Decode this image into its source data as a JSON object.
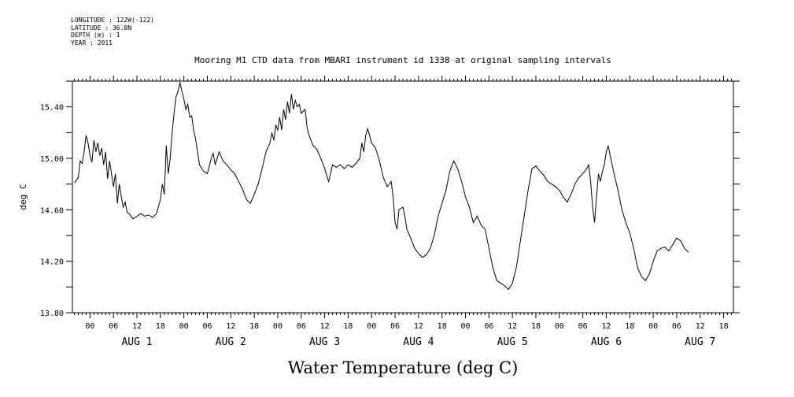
{
  "metadata": {
    "longitude": "LONGITUDE : 122W(-122)",
    "latitude": "LATITUDE : 36.8N",
    "depth": "DEPTH (m) : 1",
    "year": "YEAR : 2011"
  },
  "chart_data": {
    "type": "line",
    "title": "Mooring M1 CTD data from MBARI instrument id 1338 at original sampling intervals",
    "xlabel": "Water Temperature (deg C)",
    "ylabel": "deg C",
    "ylim": [
      13.8,
      15.6
    ],
    "xlim_hours": [
      -4.5,
      164.5
    ],
    "yticks": [
      "13.80",
      "14.20",
      "14.60",
      "15.00",
      "15.40"
    ],
    "xtick_labels": [
      "00",
      "06",
      "12",
      "18",
      "00",
      "06",
      "12",
      "18",
      "00",
      "06",
      "12",
      "18",
      "00",
      "06",
      "12",
      "18",
      "00",
      "06",
      "12",
      "18",
      "00",
      "06",
      "12",
      "18",
      "00",
      "06",
      "12",
      "18"
    ],
    "day_labels": [
      "AUG 1",
      "AUG 2",
      "AUG 3",
      "AUG 4",
      "AUG 5",
      "AUG 6",
      "AUG 7"
    ],
    "grid": false,
    "series": [
      {
        "color": "#000000",
        "points": [
          [
            -4.0,
            14.81
          ],
          [
            -3.0,
            14.85
          ],
          [
            -2.5,
            14.98
          ],
          [
            -2.0,
            14.96
          ],
          [
            -1.5,
            15.05
          ],
          [
            -1.0,
            15.18
          ],
          [
            -0.5,
            15.12
          ],
          [
            0.0,
            15.02
          ],
          [
            0.5,
            14.97
          ],
          [
            1.0,
            15.14
          ],
          [
            1.5,
            15.05
          ],
          [
            2.0,
            15.12
          ],
          [
            2.5,
            15.02
          ],
          [
            3.0,
            15.08
          ],
          [
            3.5,
            14.95
          ],
          [
            4.0,
            15.05
          ],
          [
            4.5,
            14.84
          ],
          [
            5.0,
            14.98
          ],
          [
            5.5,
            14.88
          ],
          [
            6.0,
            14.78
          ],
          [
            6.5,
            14.88
          ],
          [
            7.0,
            14.65
          ],
          [
            7.5,
            14.8
          ],
          [
            8.0,
            14.7
          ],
          [
            8.5,
            14.62
          ],
          [
            9.0,
            14.66
          ],
          [
            9.5,
            14.58
          ],
          [
            10.0,
            14.57
          ],
          [
            11.0,
            14.53
          ],
          [
            12.0,
            14.55
          ],
          [
            13.0,
            14.57
          ],
          [
            14.0,
            14.55
          ],
          [
            15.0,
            14.56
          ],
          [
            16.0,
            14.54
          ],
          [
            17.0,
            14.57
          ],
          [
            18.0,
            14.68
          ],
          [
            18.5,
            14.8
          ],
          [
            19.0,
            14.72
          ],
          [
            19.5,
            15.1
          ],
          [
            20.0,
            14.88
          ],
          [
            20.5,
            15.0
          ],
          [
            21.0,
            15.2
          ],
          [
            21.5,
            15.35
          ],
          [
            22.0,
            15.48
          ],
          [
            22.5,
            15.52
          ],
          [
            23.0,
            15.59
          ],
          [
            23.5,
            15.52
          ],
          [
            24.0,
            15.46
          ],
          [
            24.5,
            15.38
          ],
          [
            25.0,
            15.42
          ],
          [
            25.5,
            15.32
          ],
          [
            26.0,
            15.33
          ],
          [
            26.5,
            15.22
          ],
          [
            27.0,
            15.15
          ],
          [
            28.0,
            14.95
          ],
          [
            29.0,
            14.9
          ],
          [
            30.0,
            14.88
          ],
          [
            31.0,
            15.0
          ],
          [
            31.5,
            15.04
          ],
          [
            32.0,
            14.95
          ],
          [
            33.0,
            15.05
          ],
          [
            34.0,
            14.98
          ],
          [
            35.0,
            14.95
          ],
          [
            36.0,
            14.91
          ],
          [
            37.0,
            14.88
          ],
          [
            38.0,
            14.82
          ],
          [
            39.0,
            14.76
          ],
          [
            40.0,
            14.68
          ],
          [
            41.0,
            14.65
          ],
          [
            42.0,
            14.72
          ],
          [
            43.0,
            14.8
          ],
          [
            44.0,
            14.92
          ],
          [
            45.0,
            15.05
          ],
          [
            46.0,
            15.12
          ],
          [
            46.5,
            15.2
          ],
          [
            47.0,
            15.14
          ],
          [
            47.5,
            15.26
          ],
          [
            48.0,
            15.22
          ],
          [
            48.5,
            15.32
          ],
          [
            49.0,
            15.22
          ],
          [
            49.5,
            15.38
          ],
          [
            50.0,
            15.3
          ],
          [
            50.5,
            15.44
          ],
          [
            51.0,
            15.35
          ],
          [
            51.5,
            15.5
          ],
          [
            52.0,
            15.38
          ],
          [
            52.5,
            15.45
          ],
          [
            53.0,
            15.4
          ],
          [
            53.5,
            15.42
          ],
          [
            54.0,
            15.35
          ],
          [
            55.0,
            15.38
          ],
          [
            55.5,
            15.24
          ],
          [
            56.0,
            15.18
          ],
          [
            57.0,
            15.1
          ],
          [
            58.0,
            15.07
          ],
          [
            59.0,
            15.0
          ],
          [
            60.0,
            14.92
          ],
          [
            61.0,
            14.82
          ],
          [
            61.5,
            14.88
          ],
          [
            62.0,
            14.95
          ],
          [
            63.0,
            14.93
          ],
          [
            64.0,
            14.95
          ],
          [
            65.0,
            14.92
          ],
          [
            66.0,
            14.95
          ],
          [
            67.0,
            14.93
          ],
          [
            68.0,
            14.96
          ],
          [
            69.0,
            15.0
          ],
          [
            69.5,
            15.12
          ],
          [
            70.0,
            15.05
          ],
          [
            70.5,
            15.18
          ],
          [
            71.0,
            15.23
          ],
          [
            72.0,
            15.12
          ],
          [
            73.0,
            15.08
          ],
          [
            74.0,
            14.98
          ],
          [
            75.0,
            14.85
          ],
          [
            76.0,
            14.78
          ],
          [
            77.0,
            14.82
          ],
          [
            77.5,
            14.7
          ],
          [
            78.0,
            14.5
          ],
          [
            78.5,
            14.45
          ],
          [
            79.0,
            14.6
          ],
          [
            80.0,
            14.62
          ],
          [
            80.5,
            14.55
          ],
          [
            81.0,
            14.45
          ],
          [
            82.0,
            14.38
          ],
          [
            83.0,
            14.3
          ],
          [
            84.0,
            14.26
          ],
          [
            85.0,
            14.23
          ],
          [
            86.0,
            14.25
          ],
          [
            87.0,
            14.3
          ],
          [
            88.0,
            14.4
          ],
          [
            89.0,
            14.55
          ],
          [
            90.0,
            14.65
          ],
          [
            91.0,
            14.75
          ],
          [
            92.0,
            14.9
          ],
          [
            93.0,
            14.98
          ],
          [
            94.0,
            14.92
          ],
          [
            95.0,
            14.82
          ],
          [
            96.0,
            14.7
          ],
          [
            97.0,
            14.62
          ],
          [
            98.0,
            14.5
          ],
          [
            99.0,
            14.55
          ],
          [
            100.0,
            14.48
          ],
          [
            101.0,
            14.45
          ],
          [
            102.0,
            14.3
          ],
          [
            103.0,
            14.15
          ],
          [
            104.0,
            14.05
          ],
          [
            105.0,
            14.03
          ],
          [
            106.0,
            14.01
          ],
          [
            107.0,
            13.98
          ],
          [
            108.0,
            14.03
          ],
          [
            109.0,
            14.15
          ],
          [
            110.0,
            14.35
          ],
          [
            111.0,
            14.55
          ],
          [
            112.0,
            14.75
          ],
          [
            113.0,
            14.92
          ],
          [
            114.0,
            14.94
          ],
          [
            115.0,
            14.9
          ],
          [
            116.0,
            14.87
          ],
          [
            117.0,
            14.82
          ],
          [
            118.0,
            14.8
          ],
          [
            119.0,
            14.78
          ],
          [
            120.0,
            14.75
          ],
          [
            121.0,
            14.7
          ],
          [
            122.0,
            14.66
          ],
          [
            123.0,
            14.72
          ],
          [
            124.0,
            14.8
          ],
          [
            125.0,
            14.85
          ],
          [
            126.0,
            14.88
          ],
          [
            127.0,
            14.92
          ],
          [
            127.5,
            14.95
          ],
          [
            128.0,
            14.82
          ],
          [
            128.5,
            14.62
          ],
          [
            129.0,
            14.5
          ],
          [
            129.5,
            14.7
          ],
          [
            130.0,
            14.88
          ],
          [
            130.5,
            14.82
          ],
          [
            131.0,
            14.9
          ],
          [
            131.5,
            14.95
          ],
          [
            132.0,
            15.05
          ],
          [
            132.5,
            15.1
          ],
          [
            133.0,
            15.02
          ],
          [
            133.5,
            14.95
          ],
          [
            134.0,
            14.88
          ],
          [
            135.0,
            14.75
          ],
          [
            136.0,
            14.6
          ],
          [
            137.0,
            14.5
          ],
          [
            138.0,
            14.42
          ],
          [
            139.0,
            14.3
          ],
          [
            140.0,
            14.15
          ],
          [
            141.0,
            14.08
          ],
          [
            142.0,
            14.05
          ],
          [
            143.0,
            14.1
          ],
          [
            144.0,
            14.2
          ],
          [
            145.0,
            14.28
          ],
          [
            146.0,
            14.3
          ],
          [
            147.0,
            14.31
          ],
          [
            148.0,
            14.28
          ],
          [
            149.0,
            14.33
          ],
          [
            150.0,
            14.38
          ],
          [
            151.0,
            14.36
          ],
          [
            152.0,
            14.3
          ],
          [
            153.0,
            14.27
          ]
        ]
      }
    ]
  }
}
